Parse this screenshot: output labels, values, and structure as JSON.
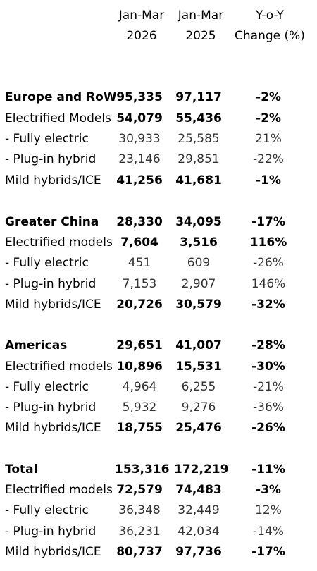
{
  "header": {
    "col1_line1": "Jan-Mar",
    "col1_line2": "2026",
    "col2_line1": "Jan-Mar",
    "col2_line2": "2025",
    "col3_line1": "Y-o-Y",
    "col3_line2": "Change (%)"
  },
  "sections": [
    {
      "title": {
        "label": "Europe and RoW",
        "v1": "95,335",
        "v2": "97,117",
        "chg": "-2%"
      },
      "electrified": {
        "label": "Electrified Models",
        "v1": "54,079",
        "v2": "55,436",
        "chg": "-2%"
      },
      "fully_electric": {
        "label": " - Fully electric",
        "v1": "30,933",
        "v2": "25,585",
        "chg": "21%"
      },
      "plugin_hybrid": {
        "label": " - Plug-in hybrid",
        "v1": "23,146",
        "v2": "29,851",
        "chg": "-22%"
      },
      "mild_ice": {
        "label": "Mild hybrids/ICE",
        "v1": "41,256",
        "v2": "41,681",
        "chg": "-1%"
      }
    },
    {
      "title": {
        "label": "Greater China",
        "v1": "28,330",
        "v2": "34,095",
        "chg": "-17%"
      },
      "electrified": {
        "label": "Electrified models",
        "v1": "7,604",
        "v2": "3,516",
        "chg": "116%"
      },
      "fully_electric": {
        "label": " - Fully electric",
        "v1": "451",
        "v2": "609",
        "chg": "-26%"
      },
      "plugin_hybrid": {
        "label": " - Plug-in hybrid",
        "v1": "7,153",
        "v2": "2,907",
        "chg": "146%"
      },
      "mild_ice": {
        "label": "Mild hybrids/ICE",
        "v1": "20,726",
        "v2": "30,579",
        "chg": "-32%"
      }
    },
    {
      "title": {
        "label": "Americas",
        "v1": "29,651",
        "v2": "41,007",
        "chg": "-28%"
      },
      "electrified": {
        "label": "Electrified models",
        "v1": "10,896",
        "v2": "15,531",
        "chg": "-30%"
      },
      "fully_electric": {
        "label": " - Fully electric",
        "v1": "4,964",
        "v2": "6,255",
        "chg": "-21%"
      },
      "plugin_hybrid": {
        "label": " - Plug-in hybrid",
        "v1": "5,932",
        "v2": "9,276",
        "chg": "-36%"
      },
      "mild_ice": {
        "label": "Mild hybrids/ICE",
        "v1": "18,755",
        "v2": "25,476",
        "chg": "-26%"
      }
    },
    {
      "title": {
        "label": "Total",
        "v1": "153,316",
        "v2": "172,219",
        "chg": "-11%"
      },
      "electrified": {
        "label": "Electrified models",
        "v1": "72,579",
        "v2": "74,483",
        "chg": "-3%"
      },
      "fully_electric": {
        "label": " - Fully electric",
        "v1": "36,348",
        "v2": "32,449",
        "chg": "12%"
      },
      "plugin_hybrid": {
        "label": " - Plug-in hybrid",
        "v1": "36,231",
        "v2": "42,034",
        "chg": "-14%"
      },
      "mild_ice": {
        "label": "Mild hybrids/ICE",
        "v1": "80,737",
        "v2": "97,736",
        "chg": "-17%"
      }
    }
  ]
}
